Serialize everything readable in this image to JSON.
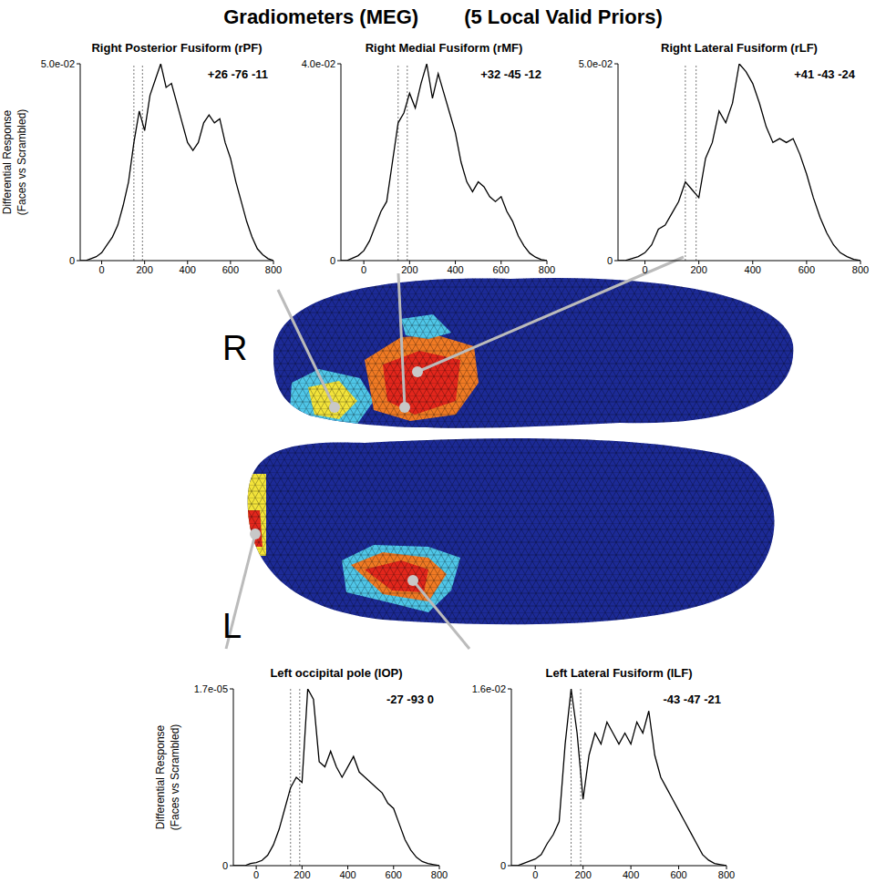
{
  "title": "Gradiometers (MEG)",
  "subtitle": "(5 Local Valid Priors)",
  "hemisphere_labels": [
    "R",
    "L"
  ],
  "chart_data": [
    {
      "type": "line",
      "title": "Right Posterior Fusiform (rPF)",
      "annotation": "+26 -76 -11",
      "ylabel": "Differential Response (Faces vs Scrambled)",
      "color": "#000000",
      "x": [
        -100,
        -75,
        -50,
        -25,
        0,
        25,
        50,
        75,
        100,
        125,
        150,
        175,
        200,
        225,
        250,
        275,
        300,
        325,
        350,
        375,
        400,
        425,
        450,
        475,
        500,
        525,
        550,
        575,
        600,
        625,
        650,
        675,
        700,
        725,
        750,
        775,
        800
      ],
      "values": [
        0,
        0,
        0.0005,
        0.001,
        0.002,
        0.004,
        0.006,
        0.009,
        0.014,
        0.02,
        0.03,
        0.038,
        0.033,
        0.042,
        0.046,
        0.05,
        0.044,
        0.045,
        0.04,
        0.035,
        0.03,
        0.028,
        0.03,
        0.035,
        0.037,
        0.035,
        0.036,
        0.03,
        0.026,
        0.02,
        0.015,
        0.01,
        0.006,
        0.003,
        0.0015,
        0.0005,
        0
      ],
      "xlim": [
        -100,
        800
      ],
      "xticks": [
        0,
        200,
        400,
        600,
        800
      ],
      "ylim": [
        0,
        0.05
      ],
      "yticks": [
        0,
        {
          "value": 0.05,
          "label": "5.0e-02"
        }
      ],
      "vlines": [
        150,
        190
      ]
    },
    {
      "type": "line",
      "title": "Right Medial Fusiform (rMF)",
      "annotation": "+32 -45 -12",
      "color": "#000000",
      "x": [
        -100,
        -75,
        -50,
        -25,
        0,
        25,
        50,
        75,
        100,
        125,
        150,
        175,
        200,
        225,
        250,
        275,
        300,
        325,
        350,
        375,
        400,
        425,
        450,
        475,
        500,
        525,
        550,
        575,
        600,
        625,
        650,
        675,
        700,
        725,
        750,
        775,
        800
      ],
      "values": [
        0,
        0,
        0.0005,
        0.001,
        0.002,
        0.004,
        0.007,
        0.01,
        0.012,
        0.02,
        0.028,
        0.03,
        0.034,
        0.031,
        0.036,
        0.04,
        0.033,
        0.038,
        0.034,
        0.03,
        0.026,
        0.02,
        0.016,
        0.014,
        0.016,
        0.015,
        0.013,
        0.012,
        0.013,
        0.01,
        0.008,
        0.005,
        0.003,
        0.0015,
        0.0007,
        0.0002,
        0
      ],
      "xlim": [
        -100,
        800
      ],
      "xticks": [
        0,
        200,
        400,
        600,
        800
      ],
      "ylim": [
        0,
        0.04
      ],
      "yticks": [
        0,
        {
          "value": 0.04,
          "label": "4.0e-02"
        }
      ],
      "vlines": [
        150,
        190
      ]
    },
    {
      "type": "line",
      "title": "Right Lateral Fusiform (rLF)",
      "annotation": "+41 -43 -24",
      "color": "#000000",
      "x": [
        -100,
        -75,
        -50,
        -25,
        0,
        25,
        50,
        75,
        100,
        125,
        150,
        175,
        200,
        225,
        250,
        275,
        300,
        325,
        350,
        375,
        400,
        425,
        450,
        475,
        500,
        525,
        550,
        575,
        600,
        625,
        650,
        675,
        700,
        725,
        750,
        775,
        800
      ],
      "values": [
        0,
        0,
        0.0005,
        0.001,
        0.002,
        0.004,
        0.008,
        0.009,
        0.012,
        0.015,
        0.02,
        0.018,
        0.016,
        0.026,
        0.03,
        0.038,
        0.035,
        0.04,
        0.05,
        0.048,
        0.045,
        0.04,
        0.034,
        0.03,
        0.031,
        0.03,
        0.031,
        0.027,
        0.022,
        0.016,
        0.011,
        0.007,
        0.004,
        0.002,
        0.001,
        0.0003,
        0
      ],
      "xlim": [
        -100,
        800
      ],
      "xticks": [
        0,
        200,
        400,
        600,
        800
      ],
      "ylim": [
        0,
        0.05
      ],
      "yticks": [
        0,
        {
          "value": 0.05,
          "label": "5.0e-02"
        }
      ],
      "vlines": [
        150,
        190
      ]
    },
    {
      "type": "line",
      "title": "Left occipital pole (lOP)",
      "annotation": "-27 -93 0",
      "ylabel": "Differential Response (Faces vs Scrambled)",
      "color": "#000000",
      "x": [
        -100,
        -75,
        -50,
        -25,
        0,
        25,
        50,
        75,
        100,
        125,
        150,
        175,
        200,
        225,
        250,
        275,
        300,
        325,
        350,
        375,
        400,
        425,
        450,
        475,
        500,
        525,
        550,
        575,
        600,
        625,
        650,
        675,
        700,
        725,
        750,
        775,
        800
      ],
      "values": [
        0,
        0,
        0,
        2e-07,
        3e-07,
        5e-07,
        1e-06,
        2e-06,
        3.5e-06,
        5.5e-06,
        7.5e-06,
        8.5e-06,
        8e-06,
        1.7e-05,
        1.6e-05,
        1e-05,
        9.5e-06,
        1.1e-05,
        9.5e-06,
        8.5e-06,
        9.5e-06,
        1.05e-05,
        9e-06,
        8.5e-06,
        8e-06,
        7.5e-06,
        7e-06,
        6e-06,
        5.5e-06,
        4e-06,
        2.5e-06,
        1.5e-06,
        8e-07,
        4e-07,
        2e-07,
        1e-07,
        0
      ],
      "xlim": [
        -100,
        800
      ],
      "xticks": [
        0,
        200,
        400,
        600,
        800
      ],
      "ylim": [
        0,
        1.7e-05
      ],
      "yticks": [
        0,
        {
          "value": 1.7e-05,
          "label": "1.7e-05"
        }
      ],
      "vlines": [
        150,
        190
      ]
    },
    {
      "type": "line",
      "title": "Left Lateral Fusiform (lLF)",
      "annotation": "-43 -47 -21",
      "color": "#000000",
      "x": [
        -100,
        -75,
        -50,
        -25,
        0,
        25,
        50,
        75,
        100,
        125,
        150,
        175,
        200,
        225,
        250,
        275,
        300,
        325,
        350,
        375,
        400,
        425,
        450,
        475,
        500,
        525,
        550,
        575,
        600,
        625,
        650,
        675,
        700,
        725,
        750,
        775,
        800
      ],
      "values": [
        0,
        0,
        0.0002,
        0.0004,
        0.0006,
        0.001,
        0.002,
        0.0028,
        0.004,
        0.011,
        0.016,
        0.012,
        0.006,
        0.01,
        0.012,
        0.011,
        0.013,
        0.012,
        0.011,
        0.012,
        0.011,
        0.013,
        0.012,
        0.014,
        0.01,
        0.008,
        0.007,
        0.006,
        0.005,
        0.004,
        0.003,
        0.002,
        0.001,
        0.0005,
        0.0002,
        0.0001,
        0
      ],
      "xlim": [
        -100,
        800
      ],
      "xticks": [
        0,
        200,
        400,
        600,
        800
      ],
      "ylim": [
        0,
        0.016
      ],
      "yticks": [
        0,
        {
          "value": 0.016,
          "label": "1.6e-02"
        }
      ],
      "vlines": [
        150,
        190
      ]
    }
  ]
}
